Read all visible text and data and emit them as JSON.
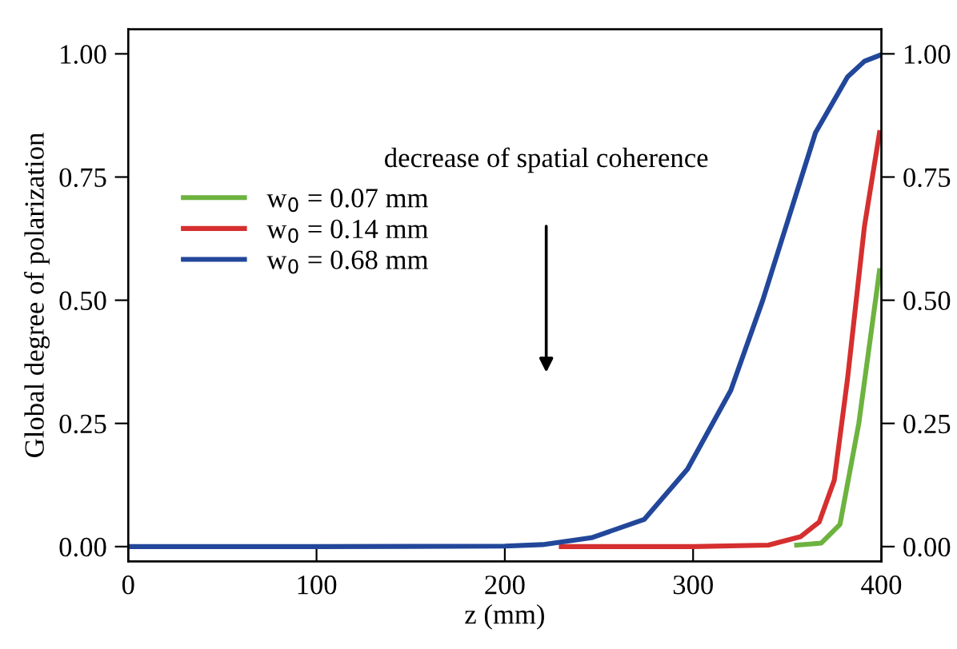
{
  "chart_data": {
    "type": "line",
    "xlabel": "z (mm)",
    "ylabel": "Global degree of polarization",
    "xlim": [
      0,
      400
    ],
    "xticks": [
      0,
      100,
      200,
      300,
      400
    ],
    "ylim": [
      -0.03,
      1.05
    ],
    "yticks": [
      {
        "value": 0,
        "label": "0.00"
      },
      {
        "value": 0.25,
        "label": "0.25"
      },
      {
        "value": 0.5,
        "label": "0.50"
      },
      {
        "value": 0.75,
        "label": "0.75"
      },
      {
        "value": 1,
        "label": "1.00"
      }
    ],
    "y2lim": [
      -0.03,
      1.05
    ],
    "y2ticks": [
      {
        "value": 0,
        "label": "0.00"
      },
      {
        "value": 0.25,
        "label": "0.25"
      },
      {
        "value": 0.5,
        "label": "0.50"
      },
      {
        "value": 0.75,
        "label": "0.75"
      },
      {
        "value": 1,
        "label": "1.00"
      }
    ],
    "legend": "left",
    "grid": false,
    "annotations": [
      "decrease of spatial coherence"
    ],
    "series": [
      {
        "name": "w$_{0}$ = 0.07 mm",
        "color": "#6db33f",
        "x": [
          355,
          368,
          378,
          388,
          399
        ],
        "values": [
          0.003,
          0.007,
          0.045,
          0.25,
          0.56
        ]
      },
      {
        "name": "w$_{0}$ = 0.14 mm",
        "color": "#d62f2f",
        "x": [
          230,
          300,
          340,
          357,
          367,
          375,
          382,
          391,
          399
        ],
        "values": [
          0,
          0,
          0.003,
          0.02,
          0.05,
          0.135,
          0.34,
          0.65,
          0.84
        ]
      },
      {
        "name": "w$_{0}$ = 0.68 mm",
        "color": "#22479a",
        "x": [
          0,
          100,
          200,
          220,
          246,
          274,
          297,
          320,
          337,
          351,
          365,
          382,
          391,
          399
        ],
        "values": [
          0,
          0,
          0.001,
          0.004,
          0.018,
          0.055,
          0.157,
          0.317,
          0.5,
          0.67,
          0.84,
          0.953,
          0.985,
          0.997
        ]
      }
    ]
  }
}
